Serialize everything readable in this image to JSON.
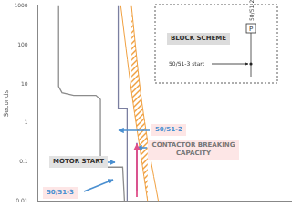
{
  "chart_data": {
    "type": "line",
    "ylabel": "Seconds",
    "log": true,
    "grid": false,
    "tick_labels": "y",
    "xlim": [
      10,
      10000
    ],
    "ylim": [
      0.01,
      1000
    ],
    "yticks": [
      0.01,
      0.1,
      1,
      10,
      100,
      1000
    ],
    "series": [
      {
        "name": "50/51-3",
        "color": "#8c8c8c",
        "x": [
          17.5,
          17.5,
          19.2,
          26.4,
          48.3,
          54.6,
          54.6,
          61.6,
          100,
          105
        ],
        "values": [
          1000,
          8.6,
          6.0,
          5.1,
          5.1,
          4.0,
          0.1,
          0.074,
          0.074,
          0.01
        ]
      },
      {
        "name": "50/51-2",
        "color": "#7b7fa0",
        "x": [
          88.6,
          88.6,
          113,
          113
        ],
        "values": [
          1000,
          2.4,
          2.4,
          0.01
        ]
      },
      {
        "name": "CONTACTOR BREAKING CAPACITY",
        "color": "#7030a0",
        "x": [
          147,
          147
        ],
        "values": [
          0.31,
          0.018
        ]
      }
    ],
    "band": {
      "name": "MOTOR START",
      "color": "#f0a040",
      "values": [
        1000,
        6.6,
        0.18,
        0.01
      ],
      "x_left": [
        95,
        127,
        162,
        197
      ],
      "x_right": [
        127,
        162,
        207,
        264
      ]
    },
    "block_scheme": {
      "title": "BLOCK SCHEME",
      "relay": "50/51-2",
      "box": "P",
      "input": "50/51-3 start"
    }
  }
}
